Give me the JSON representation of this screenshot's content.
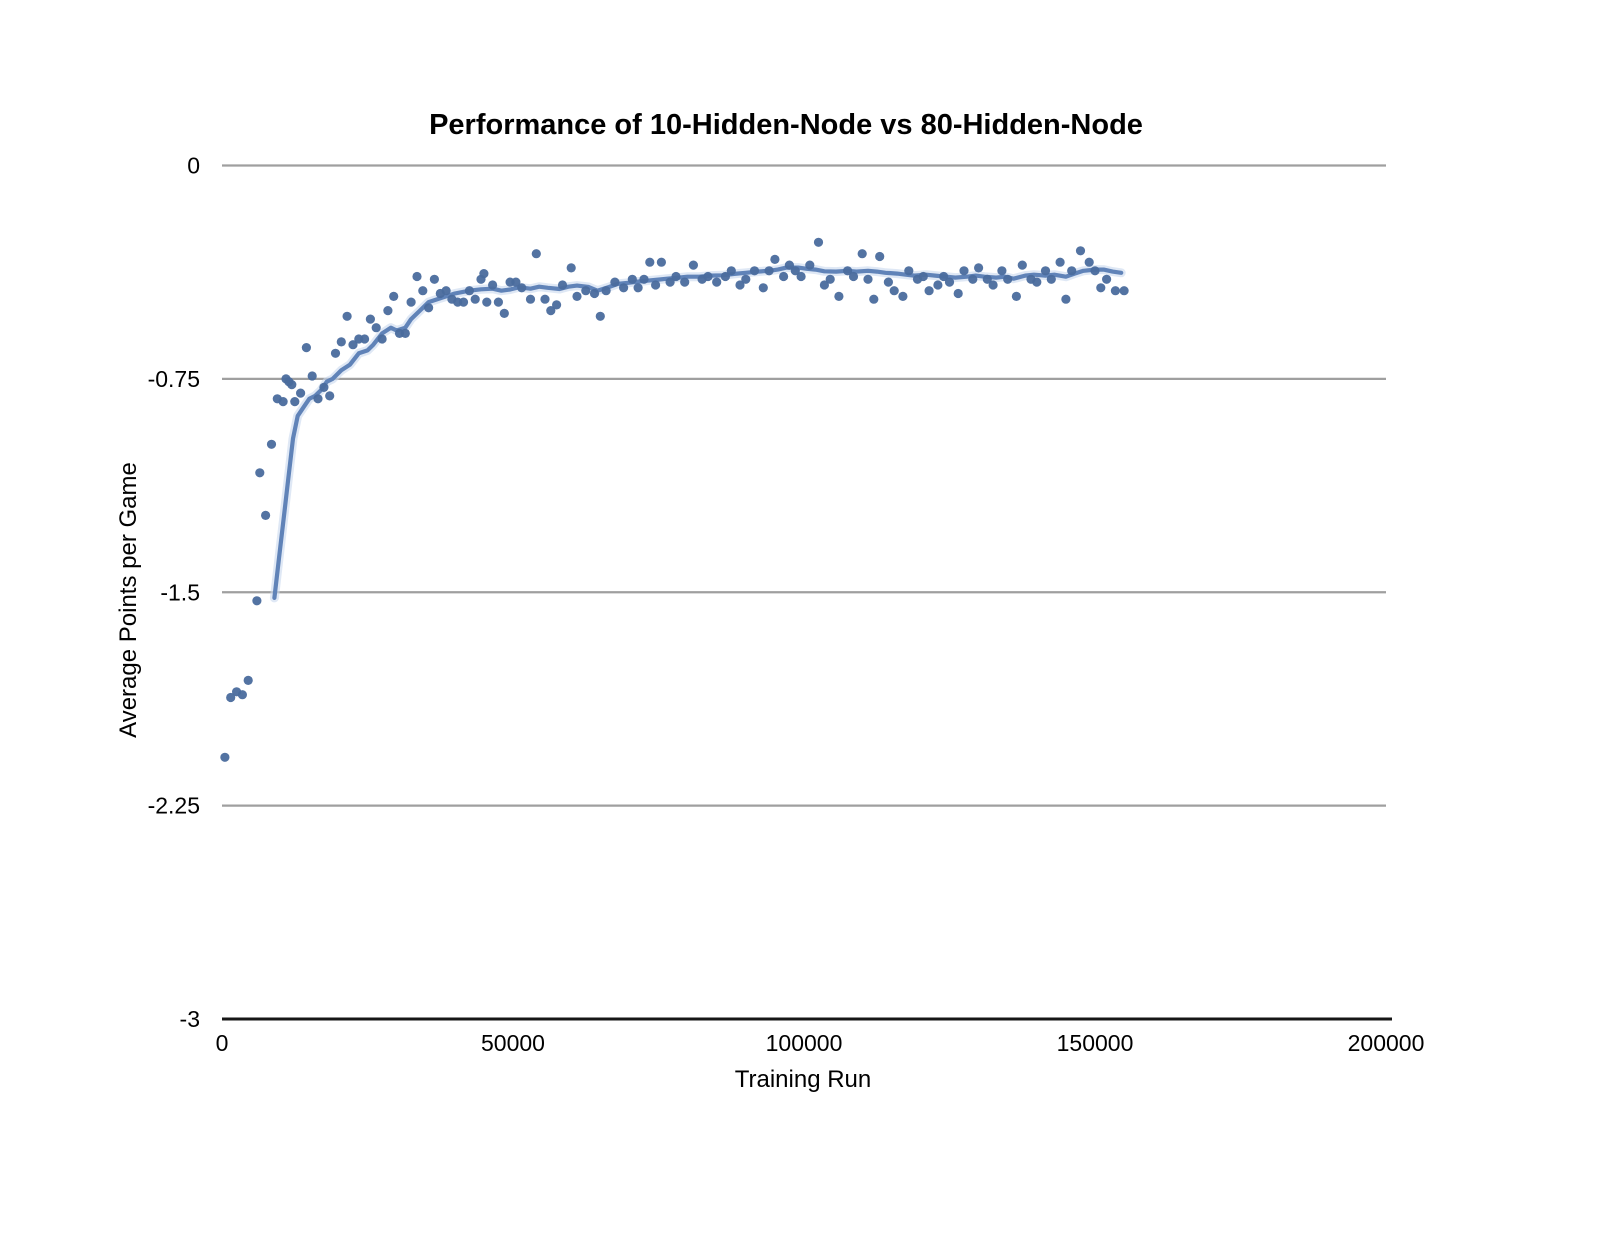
{
  "chart_data": {
    "type": "scatter",
    "title": "Performance of 10-Hidden-Node vs 80-Hidden-Node",
    "xlabel": "Training Run",
    "ylabel": "Average Points per Game",
    "xlim": [
      0,
      200000
    ],
    "ylim": [
      -3,
      0
    ],
    "x_ticks": [
      0,
      50000,
      100000,
      150000,
      200000
    ],
    "x_tick_labels": [
      "0",
      "50000",
      "100000",
      "150000",
      "200000"
    ],
    "y_ticks": [
      0,
      -0.75,
      -1.5,
      -2.25,
      -3
    ],
    "y_tick_labels": [
      "0",
      "-0.75",
      "-1.5",
      "-2.25",
      "-3"
    ],
    "grid": "horizontal-only",
    "legend": "none",
    "colors": {
      "dot": "#4a6b9d",
      "trend_line": "#6083b8",
      "trend_halo": "#c9d9ef",
      "gridline": "#9f9f9f",
      "axis_line": "#161616",
      "text": "#000000",
      "background": "#ffffff"
    },
    "series": [
      {
        "name": "scatter_points",
        "type": "scatter",
        "points": [
          [
            500,
            -2.08
          ],
          [
            1500,
            -1.87
          ],
          [
            2500,
            -1.85
          ],
          [
            3500,
            -1.86
          ],
          [
            4500,
            -1.81
          ],
          [
            6000,
            -1.53
          ],
          [
            6500,
            -1.08
          ],
          [
            7500,
            -1.23
          ],
          [
            8500,
            -0.98
          ],
          [
            9500,
            -0.82
          ],
          [
            10500,
            -0.83
          ],
          [
            11000,
            -0.75
          ],
          [
            11500,
            -0.76
          ],
          [
            12000,
            -0.77
          ],
          [
            12500,
            -0.83
          ],
          [
            13500,
            -0.8
          ],
          [
            14500,
            -0.64
          ],
          [
            15500,
            -0.74
          ],
          [
            16500,
            -0.82
          ],
          [
            17500,
            -0.78
          ],
          [
            18500,
            -0.81
          ],
          [
            19500,
            -0.66
          ],
          [
            20500,
            -0.62
          ],
          [
            21500,
            -0.53
          ],
          [
            22500,
            -0.63
          ],
          [
            23500,
            -0.61
          ],
          [
            24500,
            -0.61
          ],
          [
            25500,
            -0.54
          ],
          [
            26500,
            -0.57
          ],
          [
            27500,
            -0.61
          ],
          [
            28500,
            -0.51
          ],
          [
            29500,
            -0.46
          ],
          [
            30500,
            -0.59
          ],
          [
            31500,
            -0.59
          ],
          [
            32500,
            -0.48
          ],
          [
            33500,
            -0.39
          ],
          [
            34500,
            -0.44
          ],
          [
            35500,
            -0.5
          ],
          [
            36500,
            -0.4
          ],
          [
            37500,
            -0.45
          ],
          [
            38500,
            -0.44
          ],
          [
            39500,
            -0.47
          ],
          [
            40500,
            -0.48
          ],
          [
            41500,
            -0.48
          ],
          [
            42500,
            -0.44
          ],
          [
            43500,
            -0.47
          ],
          [
            44500,
            -0.4
          ],
          [
            45000,
            -0.38
          ],
          [
            45500,
            -0.48
          ],
          [
            46500,
            -0.42
          ],
          [
            47500,
            -0.48
          ],
          [
            48500,
            -0.52
          ],
          [
            49500,
            -0.41
          ],
          [
            50500,
            -0.41
          ],
          [
            51500,
            -0.43
          ],
          [
            53000,
            -0.47
          ],
          [
            54000,
            -0.31
          ],
          [
            55500,
            -0.47
          ],
          [
            56500,
            -0.51
          ],
          [
            57500,
            -0.49
          ],
          [
            58500,
            -0.42
          ],
          [
            60000,
            -0.36
          ],
          [
            61000,
            -0.46
          ],
          [
            62500,
            -0.44
          ],
          [
            64000,
            -0.45
          ],
          [
            65000,
            -0.53
          ],
          [
            66000,
            -0.44
          ],
          [
            67500,
            -0.41
          ],
          [
            69000,
            -0.43
          ],
          [
            70500,
            -0.4
          ],
          [
            71500,
            -0.43
          ],
          [
            72500,
            -0.4
          ],
          [
            73500,
            -0.34
          ],
          [
            74500,
            -0.42
          ],
          [
            75500,
            -0.34
          ],
          [
            77000,
            -0.41
          ],
          [
            78000,
            -0.39
          ],
          [
            79500,
            -0.41
          ],
          [
            81000,
            -0.35
          ],
          [
            82500,
            -0.4
          ],
          [
            83500,
            -0.39
          ],
          [
            85000,
            -0.41
          ],
          [
            86500,
            -0.39
          ],
          [
            87500,
            -0.37
          ],
          [
            89000,
            -0.42
          ],
          [
            90000,
            -0.4
          ],
          [
            91500,
            -0.37
          ],
          [
            93000,
            -0.43
          ],
          [
            94000,
            -0.37
          ],
          [
            95000,
            -0.33
          ],
          [
            96500,
            -0.39
          ],
          [
            97500,
            -0.35
          ],
          [
            98500,
            -0.37
          ],
          [
            99500,
            -0.39
          ],
          [
            101000,
            -0.35
          ],
          [
            102500,
            -0.27
          ],
          [
            103500,
            -0.42
          ],
          [
            104500,
            -0.4
          ],
          [
            106000,
            -0.46
          ],
          [
            107500,
            -0.37
          ],
          [
            108500,
            -0.39
          ],
          [
            110000,
            -0.31
          ],
          [
            111000,
            -0.4
          ],
          [
            112000,
            -0.47
          ],
          [
            113000,
            -0.32
          ],
          [
            114500,
            -0.41
          ],
          [
            115500,
            -0.44
          ],
          [
            117000,
            -0.46
          ],
          [
            118000,
            -0.37
          ],
          [
            119500,
            -0.4
          ],
          [
            120500,
            -0.39
          ],
          [
            121500,
            -0.44
          ],
          [
            123000,
            -0.42
          ],
          [
            124000,
            -0.39
          ],
          [
            125000,
            -0.41
          ],
          [
            126500,
            -0.45
          ],
          [
            127500,
            -0.37
          ],
          [
            129000,
            -0.4
          ],
          [
            130000,
            -0.36
          ],
          [
            131500,
            -0.4
          ],
          [
            132500,
            -0.42
          ],
          [
            134000,
            -0.37
          ],
          [
            135000,
            -0.4
          ],
          [
            136500,
            -0.46
          ],
          [
            137500,
            -0.35
          ],
          [
            139000,
            -0.4
          ],
          [
            140000,
            -0.41
          ],
          [
            141500,
            -0.37
          ],
          [
            142500,
            -0.4
          ],
          [
            144000,
            -0.34
          ],
          [
            145000,
            -0.47
          ],
          [
            146000,
            -0.37
          ],
          [
            147500,
            -0.3
          ],
          [
            149000,
            -0.34
          ],
          [
            150000,
            -0.37
          ],
          [
            151000,
            -0.43
          ],
          [
            152000,
            -0.4
          ],
          [
            153500,
            -0.44
          ],
          [
            155000,
            -0.44
          ]
        ]
      },
      {
        "name": "smoothed_trend",
        "type": "line",
        "points": [
          [
            9000,
            -1.52
          ],
          [
            9800,
            -1.38
          ],
          [
            10600,
            -1.24
          ],
          [
            11400,
            -1.1
          ],
          [
            12200,
            -0.96
          ],
          [
            13000,
            -0.88
          ],
          [
            14000,
            -0.85
          ],
          [
            15000,
            -0.82
          ],
          [
            16000,
            -0.81
          ],
          [
            17000,
            -0.79
          ],
          [
            18000,
            -0.76
          ],
          [
            19000,
            -0.75
          ],
          [
            20500,
            -0.72
          ],
          [
            22000,
            -0.7
          ],
          [
            23500,
            -0.66
          ],
          [
            25000,
            -0.65
          ],
          [
            26000,
            -0.63
          ],
          [
            27500,
            -0.59
          ],
          [
            29000,
            -0.57
          ],
          [
            30000,
            -0.58
          ],
          [
            31500,
            -0.57
          ],
          [
            32500,
            -0.54
          ],
          [
            34000,
            -0.51
          ],
          [
            35500,
            -0.48
          ],
          [
            37000,
            -0.47
          ],
          [
            38500,
            -0.46
          ],
          [
            40000,
            -0.45
          ],
          [
            42500,
            -0.44
          ],
          [
            44500,
            -0.435
          ],
          [
            46500,
            -0.433
          ],
          [
            48000,
            -0.44
          ],
          [
            49500,
            -0.436
          ],
          [
            51000,
            -0.428
          ],
          [
            53000,
            -0.433
          ],
          [
            54500,
            -0.426
          ],
          [
            56000,
            -0.43
          ],
          [
            58000,
            -0.434
          ],
          [
            59500,
            -0.426
          ],
          [
            61000,
            -0.422
          ],
          [
            63000,
            -0.427
          ],
          [
            64500,
            -0.44
          ],
          [
            66500,
            -0.427
          ],
          [
            68000,
            -0.416
          ],
          [
            70000,
            -0.412
          ],
          [
            71500,
            -0.408
          ],
          [
            73000,
            -0.405
          ],
          [
            75000,
            -0.401
          ],
          [
            76500,
            -0.398
          ],
          [
            78500,
            -0.394
          ],
          [
            80000,
            -0.391
          ],
          [
            82000,
            -0.391
          ],
          [
            84000,
            -0.387
          ],
          [
            86000,
            -0.386
          ],
          [
            88000,
            -0.381
          ],
          [
            90000,
            -0.377
          ],
          [
            92000,
            -0.373
          ],
          [
            94000,
            -0.37
          ],
          [
            95500,
            -0.366
          ],
          [
            97000,
            -0.359
          ],
          [
            99000,
            -0.359
          ],
          [
            100500,
            -0.363
          ],
          [
            102000,
            -0.366
          ],
          [
            103500,
            -0.372
          ],
          [
            105500,
            -0.373
          ],
          [
            107500,
            -0.37
          ],
          [
            109000,
            -0.373
          ],
          [
            111000,
            -0.37
          ],
          [
            112500,
            -0.373
          ],
          [
            114000,
            -0.377
          ],
          [
            116000,
            -0.38
          ],
          [
            117500,
            -0.384
          ],
          [
            119000,
            -0.387
          ],
          [
            121000,
            -0.384
          ],
          [
            122500,
            -0.387
          ],
          [
            124500,
            -0.391
          ],
          [
            126000,
            -0.394
          ],
          [
            128000,
            -0.391
          ],
          [
            129500,
            -0.387
          ],
          [
            131000,
            -0.391
          ],
          [
            133000,
            -0.394
          ],
          [
            134500,
            -0.391
          ],
          [
            136000,
            -0.398
          ],
          [
            138000,
            -0.387
          ],
          [
            139500,
            -0.384
          ],
          [
            141500,
            -0.387
          ],
          [
            143000,
            -0.384
          ],
          [
            145000,
            -0.391
          ],
          [
            146500,
            -0.38
          ],
          [
            148000,
            -0.37
          ],
          [
            150000,
            -0.366
          ],
          [
            151500,
            -0.366
          ],
          [
            153000,
            -0.373
          ],
          [
            154500,
            -0.377
          ]
        ]
      }
    ]
  }
}
